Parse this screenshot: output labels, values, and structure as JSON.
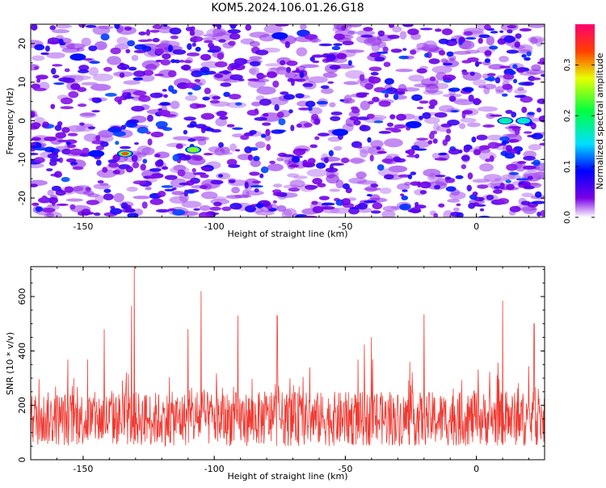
{
  "title": "KOM5.2024.106.01.26.G18",
  "chart_data": [
    {
      "type": "heatmap",
      "xlabel": "Height of straight line (km)",
      "ylabel": "Frequency (Hz)",
      "xlim": [
        -170,
        26
      ],
      "ylim": [
        -25,
        25
      ],
      "x_ticks": [
        -150,
        -100,
        -50,
        0
      ],
      "x_tick_labels": [
        "-150",
        "-100",
        "-50",
        "0"
      ],
      "y_ticks": [
        20,
        10,
        0,
        -10,
        -20
      ],
      "y_tick_labels": [
        "20",
        "10",
        "0",
        "-10",
        "-20"
      ],
      "colorbar": {
        "label": "Normalized spectral amplitude",
        "range": [
          0,
          0.38
        ],
        "ticks": [
          0.0,
          0.1,
          0.2,
          0.3
        ],
        "tick_labels": [
          "0.0",
          "0.1",
          "0.2",
          "0.3"
        ]
      },
      "peaks": [
        {
          "x": -134,
          "y": -8.5,
          "value": 0.36
        },
        {
          "x": -108,
          "y": -7.5,
          "value": 0.26
        },
        {
          "x": -145,
          "y": -8.5,
          "value": 0.14
        },
        {
          "x": 11,
          "y": 0,
          "value": 0.2
        },
        {
          "x": 18,
          "y": 0,
          "value": 0.16
        },
        {
          "x": -52,
          "y": -3,
          "value": 0.12
        },
        {
          "x": -75,
          "y": 22,
          "value": 0.1
        },
        {
          "x": -24,
          "y": -1,
          "value": 0.1
        },
        {
          "x": -152,
          "y": 16.5,
          "value": 0.1
        }
      ]
    },
    {
      "type": "line",
      "xlabel": "Height of straight line (km)",
      "ylabel": "SNR (10 * v/v)",
      "xlim": [
        -170,
        26
      ],
      "ylim": [
        0,
        710
      ],
      "x_ticks": [
        -150,
        -100,
        -50,
        0
      ],
      "x_tick_labels": [
        "-150",
        "-100",
        "-50",
        "0"
      ],
      "y_ticks": [
        0,
        200,
        400,
        600
      ],
      "y_tick_labels": [
        "0",
        "200",
        "400",
        "600"
      ],
      "color": "#f03a32",
      "baseline_mean": 150,
      "peaks": [
        {
          "x": -130.5,
          "y": 710
        },
        {
          "x": -131.5,
          "y": 565
        },
        {
          "x": -105,
          "y": 620
        },
        {
          "x": -91,
          "y": 530
        },
        {
          "x": -76,
          "y": 530
        },
        {
          "x": -20,
          "y": 535
        },
        {
          "x": 10,
          "y": 585
        },
        {
          "x": 22,
          "y": 500
        },
        {
          "x": -142,
          "y": 480
        },
        {
          "x": -110,
          "y": 480
        },
        {
          "x": -40,
          "y": 450
        }
      ]
    }
  ]
}
